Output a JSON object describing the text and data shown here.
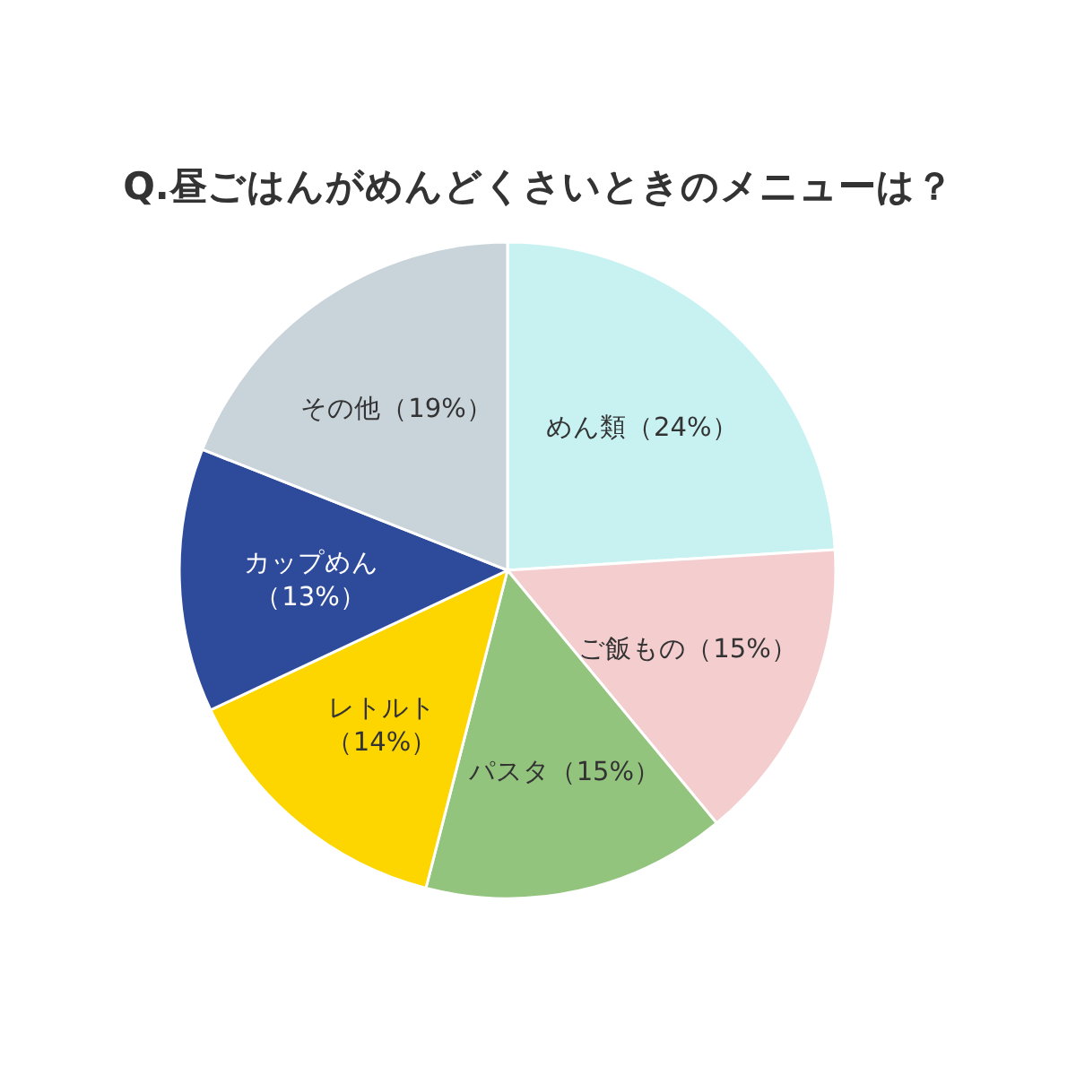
{
  "chart_data": {
    "type": "pie",
    "title": "Q.昼ごはんがめんどくさいときのメニューは？",
    "categories": [
      "めん類",
      "ご飯もの",
      "パスタ",
      "レトルト",
      "カップめん",
      "その他"
    ],
    "values": [
      24,
      15,
      15,
      14,
      13,
      19
    ],
    "value_labels": [
      "（24%）",
      "（15%）",
      "（15%）",
      "（14%）",
      "（13%）",
      "（19%）"
    ],
    "colors": [
      "#c8f2f2",
      "#f4cdce",
      "#93c47d",
      "#fdd600",
      "#2e4b9b",
      "#c8d3da"
    ]
  }
}
